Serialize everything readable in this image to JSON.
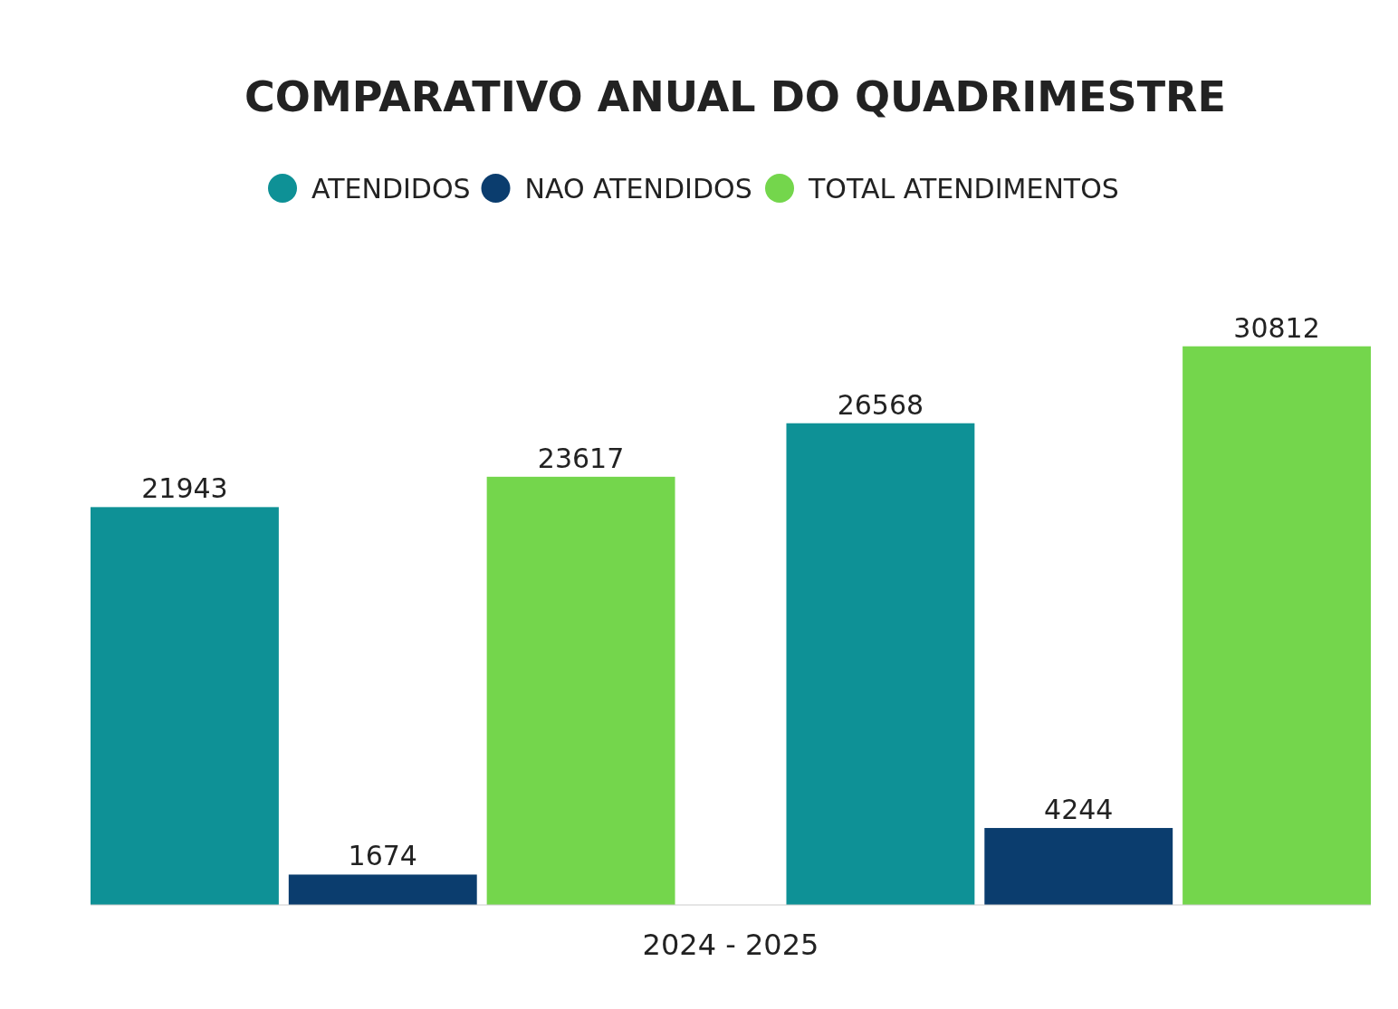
{
  "chart_data": {
    "type": "bar",
    "title": "COMPARATIVO ANUAL DO QUADRIMESTRE",
    "xlabel": "2024 - 2025",
    "categories": [
      null,
      null
    ],
    "series": [
      {
        "name": "ATENDIDOS",
        "color": "#0e9196",
        "values": [
          21943,
          26568
        ]
      },
      {
        "name": "NAO ATENDIDOS",
        "color": "#0b3d6e",
        "values": [
          1674,
          4244
        ]
      },
      {
        "name": "TOTAL ATENDIMENTOS",
        "color": "#74d64c",
        "values": [
          23617,
          30812
        ]
      }
    ],
    "data_labels": true,
    "legend": "top"
  }
}
